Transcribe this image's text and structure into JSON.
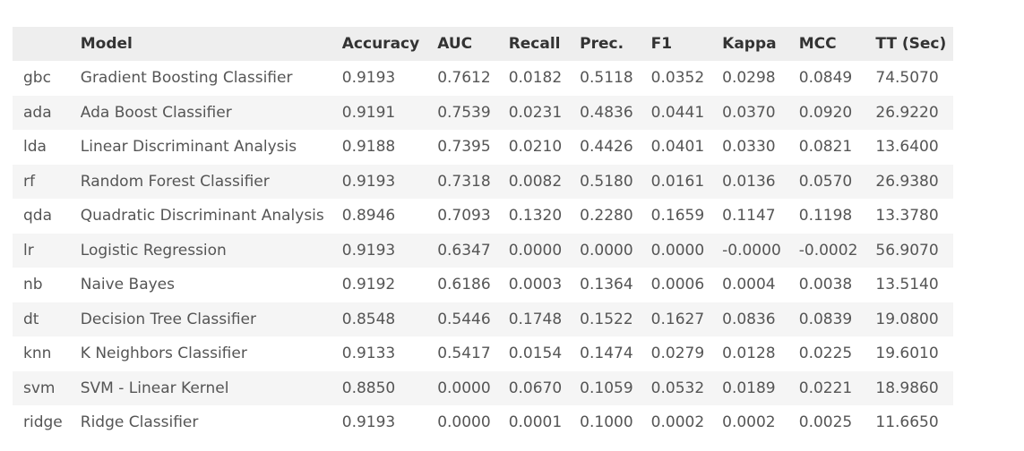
{
  "table": {
    "headers": [
      "",
      "Model",
      "Accuracy",
      "AUC",
      "Recall",
      "Prec.",
      "F1",
      "Kappa",
      "MCC",
      "TT (Sec)"
    ],
    "rows": [
      [
        "gbc",
        "Gradient Boosting Classifier",
        "0.9193",
        "0.7612",
        "0.0182",
        "0.5118",
        "0.0352",
        "0.0298",
        "0.0849",
        "74.5070"
      ],
      [
        "ada",
        "Ada Boost Classifier",
        "0.9191",
        "0.7539",
        "0.0231",
        "0.4836",
        "0.0441",
        "0.0370",
        "0.0920",
        "26.9220"
      ],
      [
        "lda",
        "Linear Discriminant Analysis",
        "0.9188",
        "0.7395",
        "0.0210",
        "0.4426",
        "0.0401",
        "0.0330",
        "0.0821",
        "13.6400"
      ],
      [
        "rf",
        "Random Forest Classifier",
        "0.9193",
        "0.7318",
        "0.0082",
        "0.5180",
        "0.0161",
        "0.0136",
        "0.0570",
        "26.9380"
      ],
      [
        "qda",
        "Quadratic Discriminant Analysis",
        "0.8946",
        "0.7093",
        "0.1320",
        "0.2280",
        "0.1659",
        "0.1147",
        "0.1198",
        "13.3780"
      ],
      [
        "lr",
        "Logistic Regression",
        "0.9193",
        "0.6347",
        "0.0000",
        "0.0000",
        "0.0000",
        "-0.0000",
        "-0.0002",
        "56.9070"
      ],
      [
        "nb",
        "Naive Bayes",
        "0.9192",
        "0.6186",
        "0.0003",
        "0.1364",
        "0.0006",
        "0.0004",
        "0.0038",
        "13.5140"
      ],
      [
        "dt",
        "Decision Tree Classifier",
        "0.8548",
        "0.5446",
        "0.1748",
        "0.1522",
        "0.1627",
        "0.0836",
        "0.0839",
        "19.0800"
      ],
      [
        "knn",
        "K Neighbors Classifier",
        "0.9133",
        "0.5417",
        "0.0154",
        "0.1474",
        "0.0279",
        "0.0128",
        "0.0225",
        "19.6010"
      ],
      [
        "svm",
        "SVM - Linear Kernel",
        "0.8850",
        "0.0000",
        "0.0670",
        "0.1059",
        "0.0532",
        "0.0189",
        "0.0221",
        "18.9860"
      ],
      [
        "ridge",
        "Ridge Classifier",
        "0.9193",
        "0.0000",
        "0.0001",
        "0.1000",
        "0.0002",
        "0.0002",
        "0.0025",
        "11.6650"
      ]
    ]
  }
}
